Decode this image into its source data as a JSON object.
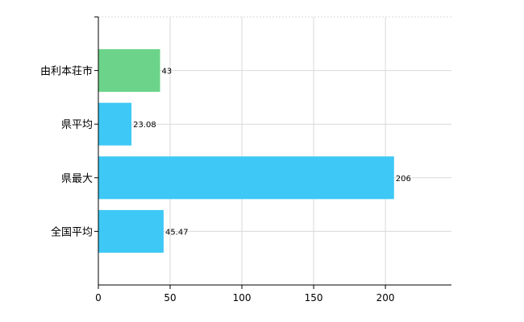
{
  "chart_data": {
    "type": "bar",
    "orientation": "horizontal",
    "categories": [
      "由利本荘市",
      "県平均",
      "県最大",
      "全国平均"
    ],
    "values": [
      43,
      23.08,
      206,
      45.47
    ],
    "value_labels": [
      "43",
      "23.08",
      "206",
      "45.47"
    ],
    "bar_colors": [
      "#6cd48a",
      "#3ec8f5",
      "#3ec8f5",
      "#3ec8f5"
    ],
    "xlim": [
      0,
      246
    ],
    "xticks": [
      0,
      50,
      100,
      150,
      200
    ],
    "grid": true,
    "legend": "none"
  }
}
